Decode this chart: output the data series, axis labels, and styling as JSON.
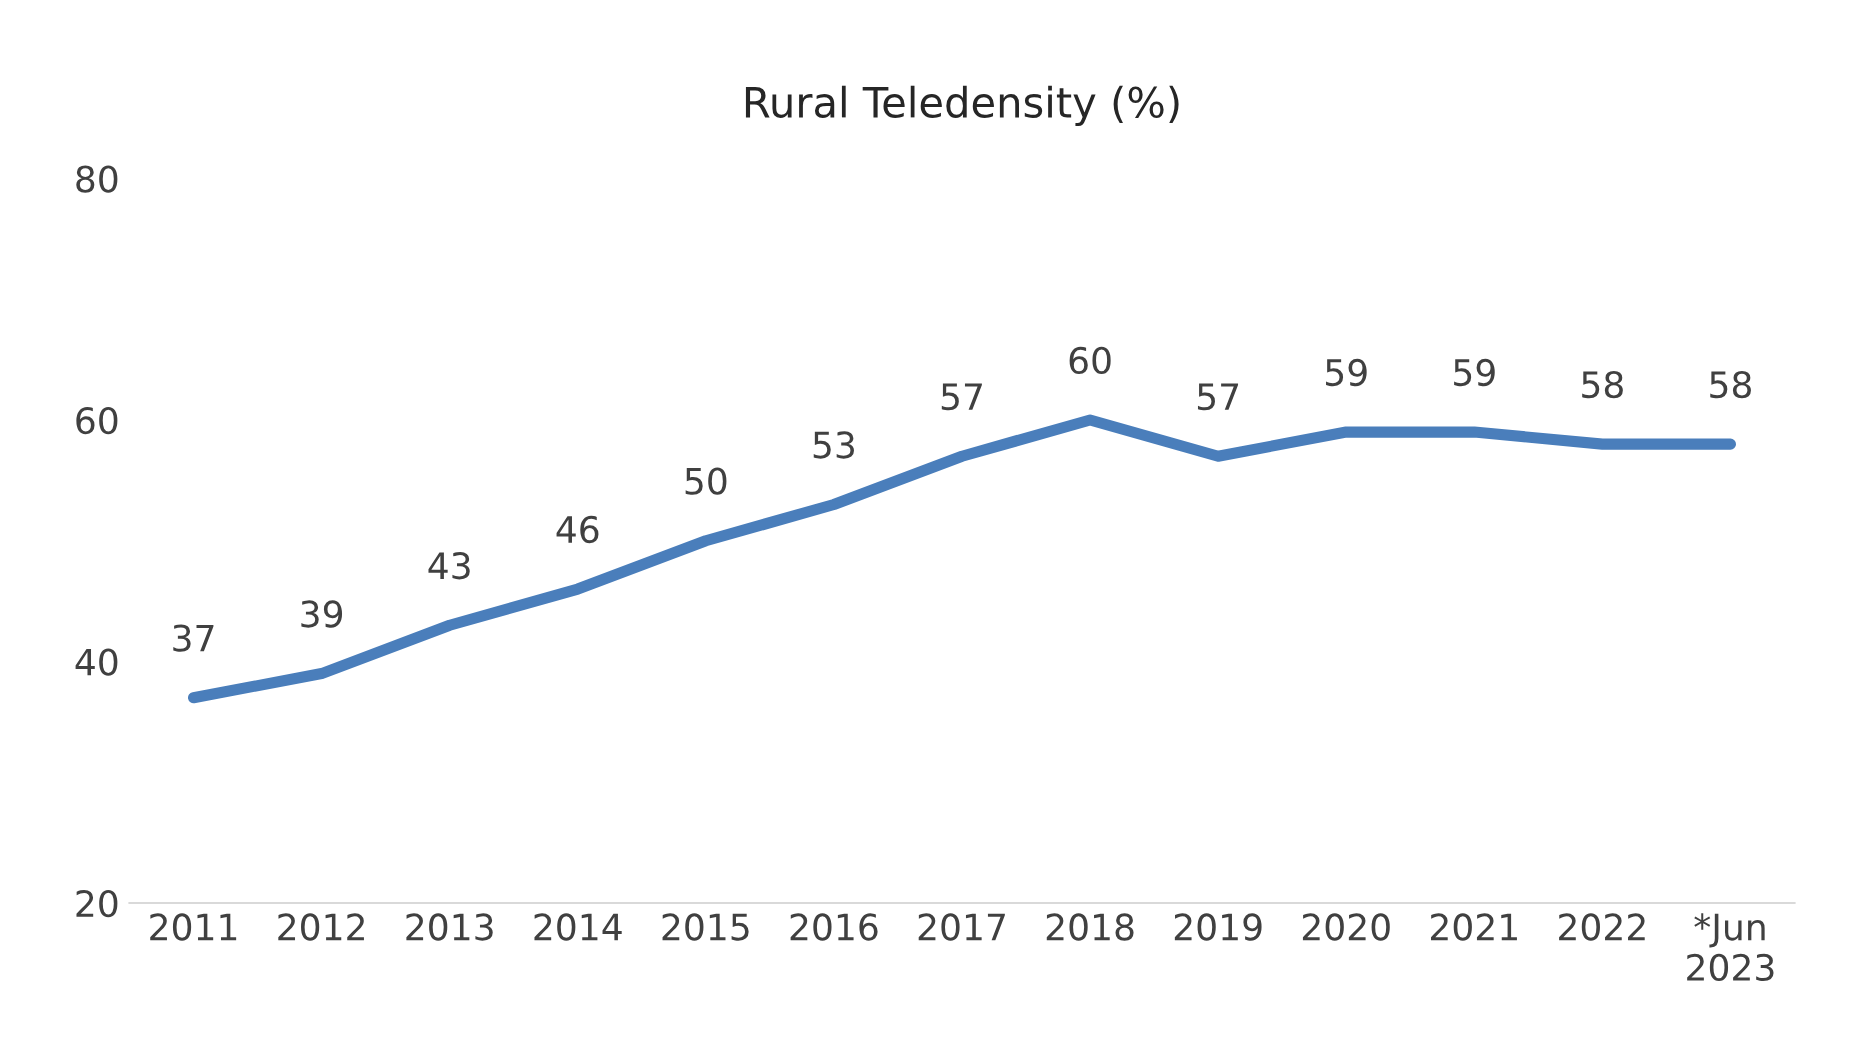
{
  "chart_data": {
    "type": "line",
    "title": "Rural Teledensity (%)",
    "categories": [
      "2011",
      "2012",
      "2013",
      "2014",
      "2015",
      "2016",
      "2017",
      "2018",
      "2019",
      "2020",
      "2021",
      "2022",
      "*Jun\n2023"
    ],
    "series": [
      {
        "color": "#4a7ebb",
        "values": [
          37,
          39,
          43,
          46,
          50,
          53,
          57,
          60,
          57,
          59,
          59,
          58,
          58
        ]
      }
    ],
    "ylim": [
      20,
      80
    ],
    "yticks": [
      20,
      40,
      60,
      80
    ],
    "grid": false,
    "legend": false,
    "data_labels": true,
    "marker": "none",
    "line_style": "solid"
  }
}
